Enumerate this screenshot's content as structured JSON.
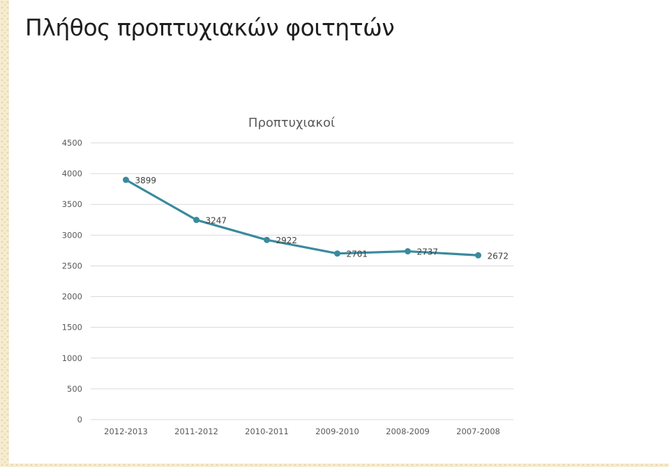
{
  "page": {
    "title": "Πλήθος προπτυχιακών φοιτητών"
  },
  "chart_data": {
    "type": "line",
    "title": "Προπτυχιακοί",
    "xlabel": "",
    "ylabel": "",
    "categories": [
      "2012-2013",
      "2011-2012",
      "2010-2011",
      "2009-2010",
      "2008-2009",
      "2007-2008"
    ],
    "series": [
      {
        "values": [
          3899,
          3247,
          2922,
          2701,
          2737,
          2672
        ],
        "color": "#3a8a9e"
      }
    ],
    "ylim": [
      0,
      4500
    ],
    "yticks": [
      0,
      500,
      1000,
      1500,
      2000,
      2500,
      3000,
      3500,
      4000,
      4500
    ],
    "grid": true,
    "data_labels": true,
    "marker": "circle"
  }
}
